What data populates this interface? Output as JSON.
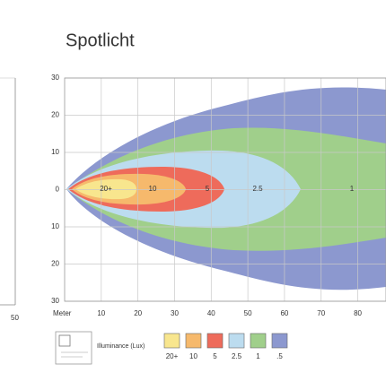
{
  "chart_data": {
    "type": "isolux",
    "title": "Spotlicht",
    "x_label": "Meter",
    "xlim": [
      0,
      87.7
    ],
    "ylim": [
      -30,
      30
    ],
    "xticks": [
      10,
      20,
      30,
      40,
      50,
      60,
      70,
      80
    ],
    "yticks": [
      {
        "value": 30,
        "label": "30"
      },
      20,
      10,
      0,
      {
        "value": -10,
        "label": "10"
      },
      {
        "value": -20,
        "label": "20"
      },
      {
        "value": -30,
        "label": "30"
      }
    ],
    "grid": true,
    "legend_title": "Illuminance (Lux)",
    "levels": [
      {
        "label": "20+",
        "color": "#f8e68e"
      },
      {
        "label": "10",
        "color": "#f6b96c"
      },
      {
        "label": "5",
        "color": "#ee6b5b"
      },
      {
        "label": "2.5",
        "color": "#bcdcef"
      },
      {
        "label": "1",
        "color": "#a0cf8b"
      },
      {
        "label": ".5",
        "color": "#8c98cf"
      }
    ]
  },
  "left_chart": {
    "tick": "50"
  }
}
